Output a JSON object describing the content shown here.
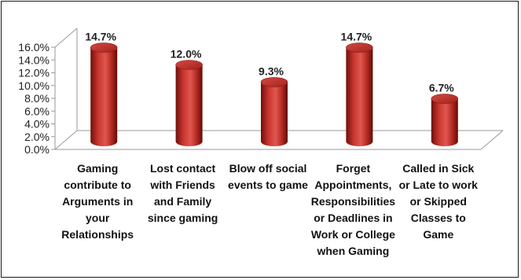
{
  "chart_data": {
    "type": "bar",
    "style": "3d-cylinder",
    "categories": [
      "Gaming\ncontribute to\nArguments in\nyour\nRelationships",
      "Lost contact\nwith Friends\nand Family\nsince gaming",
      "Blow off social\nevents to game",
      "Forget\nAppointments,\nResponsibilities\nor Deadlines in\nWork or College\nwhen Gaming",
      "Called in Sick\nor Late to work\nor Skipped\nClasses to\nGame"
    ],
    "values": [
      14.7,
      12.0,
      9.3,
      14.7,
      6.7
    ],
    "data_labels": [
      "14.7%",
      "12.0%",
      "9.3%",
      "14.7%",
      "6.7%"
    ],
    "yticks": [
      "0.0%",
      "2.0%",
      "4.0%",
      "6.0%",
      "8.0%",
      "10.0%",
      "12.0%",
      "14.0%",
      "16.0%"
    ],
    "ylim": [
      0,
      16
    ],
    "title": "",
    "xlabel": "",
    "ylabel": "",
    "grid": false,
    "legend": "none",
    "bar_color": "#c0302a"
  }
}
